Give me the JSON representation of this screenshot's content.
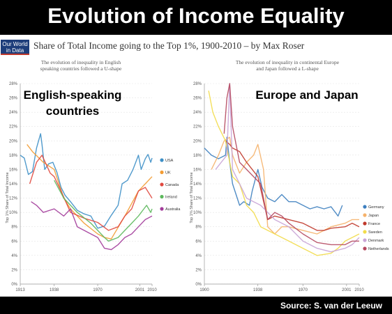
{
  "header": {
    "title": "Evolution of Income Equality"
  },
  "brand": {
    "line1": "Our World",
    "line2": "in Data"
  },
  "subtitle": "Share of Total Income going to the Top 1%, 1900-2010 – by Max Roser",
  "source": "Source: S. van der Leeuw",
  "colors": {
    "USA": "#3d8fc6",
    "UK": "#f39c33",
    "Canada": "#e0493f",
    "Ireland": "#5cb85c",
    "Australia": "#a23b9a",
    "Germany": "#3d7fbf",
    "Japan": "#f5b26b",
    "France": "#c0392b",
    "Sweden": "#f2dc4a",
    "Denmark": "#c9a4d6",
    "Netherlands": "#b5485f"
  },
  "chart_data": [
    {
      "type": "line",
      "note_line1": "The evolution of inequality in English",
      "note_line2": "speaking countries followed a U-shape",
      "label_line1": "English-speaking",
      "label_line2": "countries",
      "ylabel": "Top 1% Share of Total Income",
      "xlim": [
        1913,
        2010
      ],
      "ylim": [
        0,
        28
      ],
      "yticks": [
        "0%",
        "2%",
        "4%",
        "6%",
        "8%",
        "10%",
        "12%",
        "14%",
        "16%",
        "18%",
        "20%",
        "22%",
        "24%",
        "26%",
        "28%"
      ],
      "xticks": [
        {
          "value": 1913,
          "label": "1913"
        },
        {
          "value": 1938,
          "label": "1938"
        },
        {
          "value": 1970,
          "label": "1970"
        },
        {
          "value": 2001,
          "label": "2001"
        },
        {
          "value": 2010,
          "label": "2010"
        }
      ],
      "series": [
        {
          "name": "USA",
          "x": [
            1913,
            1916,
            1919,
            1922,
            1925,
            1928,
            1929,
            1931,
            1934,
            1937,
            1940,
            1943,
            1946,
            1950,
            1955,
            1960,
            1965,
            1970,
            1975,
            1980,
            1985,
            1988,
            1992,
            1996,
            2000,
            2002,
            2005,
            2007,
            2009,
            2010
          ],
          "y": [
            18,
            17.6,
            15.3,
            15.7,
            19,
            21,
            19.5,
            16,
            16.8,
            17,
            15.6,
            13.5,
            12.4,
            11.5,
            10.3,
            9.8,
            9.5,
            7.8,
            8.1,
            9.6,
            11,
            14,
            14.5,
            16,
            18,
            16,
            17.5,
            18.1,
            17,
            17.6
          ]
        },
        {
          "name": "UK",
          "x": [
            1918,
            1922,
            1930,
            1938,
            1945,
            1950,
            1960,
            1970,
            1975,
            1980,
            1990,
            2000,
            2005,
            2010
          ],
          "y": [
            19.5,
            18.5,
            17,
            16,
            12,
            10.5,
            8.5,
            7,
            6.5,
            6.3,
            9.5,
            13,
            14,
            15
          ]
        },
        {
          "name": "Canada",
          "x": [
            1920,
            1925,
            1929,
            1935,
            1938,
            1943,
            1950,
            1960,
            1970,
            1978,
            1985,
            1990,
            1995,
            2000,
            2005,
            2010
          ],
          "y": [
            14,
            17,
            18,
            15.5,
            15,
            13,
            10,
            9.2,
            8.6,
            7.5,
            8,
            9.5,
            10.5,
            13,
            13.5,
            12
          ]
        },
        {
          "name": "Ireland",
          "x": [
            1938,
            1945,
            1955,
            1965,
            1975,
            1978,
            1985,
            1990,
            1995,
            2000,
            2004,
            2006,
            2009,
            2010
          ],
          "y": [
            14.5,
            12,
            10,
            8.5,
            6.5,
            6,
            6.5,
            7.5,
            8.5,
            9.5,
            10.5,
            11,
            10,
            10.5
          ]
        },
        {
          "name": "Australia",
          "x": [
            1921,
            1925,
            1930,
            1938,
            1945,
            1950,
            1955,
            1960,
            1965,
            1970,
            1975,
            1980,
            1985,
            1990,
            1995,
            2000,
            2005,
            2010
          ],
          "y": [
            11.5,
            11,
            10,
            10.5,
            9.5,
            10.5,
            8,
            7.5,
            7,
            6.5,
            5,
            4.8,
            5.5,
            6.5,
            7,
            8,
            9,
            9.5
          ]
        }
      ]
    },
    {
      "type": "line",
      "note_line1": "The evolution of inequality in continental Europe",
      "note_line2": "and Japan followed a L-shape",
      "label_line1": "Europe and Japan",
      "ylabel": "Top 1% Share of Total Income",
      "xlim": [
        1900,
        2010
      ],
      "ylim": [
        0,
        28
      ],
      "yticks": [
        "0%",
        "2%",
        "4%",
        "6%",
        "8%",
        "10%",
        "12%",
        "14%",
        "16%",
        "18%",
        "20%",
        "22%",
        "24%",
        "26%",
        "28%"
      ],
      "xticks": [
        {
          "value": 1900,
          "label": "1900"
        },
        {
          "value": 1938,
          "label": "1938"
        },
        {
          "value": 1970,
          "label": "1970"
        },
        {
          "value": 2001,
          "label": "2001"
        },
        {
          "value": 2010,
          "label": "2010"
        }
      ],
      "series": [
        {
          "name": "Germany",
          "x": [
            1900,
            1905,
            1910,
            1915,
            1916,
            1918,
            1920,
            1925,
            1928,
            1932,
            1934,
            1938,
            1941,
            1945,
            1950,
            1955,
            1960,
            1965,
            1970,
            1975,
            1980,
            1985,
            1990,
            1995,
            1998
          ],
          "y": [
            19,
            18,
            17.5,
            18,
            20.5,
            17,
            14,
            11,
            11.5,
            11,
            13,
            16,
            13.5,
            12,
            11.5,
            12.5,
            11.5,
            11.5,
            11,
            10.5,
            10.8,
            10.5,
            10.8,
            9.5,
            11
          ]
        },
        {
          "name": "Japan",
          "x": [
            1905,
            1910,
            1914,
            1918,
            1920,
            1925,
            1930,
            1935,
            1938,
            1942,
            1945,
            1950,
            1955,
            1960,
            1970,
            1980,
            1990,
            2000,
            2005,
            2010
          ],
          "y": [
            16,
            18,
            20,
            20.5,
            18,
            15.5,
            17,
            18,
            19.5,
            16,
            8,
            7,
            8,
            8,
            7.5,
            7,
            8,
            8.5,
            9,
            9
          ]
        },
        {
          "name": "France",
          "x": [
            1915,
            1918,
            1920,
            1925,
            1930,
            1938,
            1945,
            1950,
            1960,
            1970,
            1980,
            1985,
            1990,
            2000,
            2005,
            2010
          ],
          "y": [
            20,
            19.5,
            19,
            18.5,
            17,
            15,
            9,
            9.5,
            9,
            8.5,
            7.5,
            7.5,
            7.8,
            8,
            8.5,
            8
          ]
        },
        {
          "name": "Sweden",
          "x": [
            1903,
            1906,
            1910,
            1915,
            1920,
            1925,
            1930,
            1935,
            1940,
            1945,
            1950,
            1955,
            1960,
            1970,
            1975,
            1980,
            1990,
            1995,
            2000,
            2005,
            2010
          ],
          "y": [
            27,
            24,
            22,
            20,
            15,
            14,
            11,
            10,
            8,
            7.5,
            7,
            6.5,
            6,
            5,
            4.5,
            4,
            4.3,
            5,
            6,
            6.5,
            7
          ]
        },
        {
          "name": "Denmark",
          "x": [
            1908,
            1912,
            1916,
            1918,
            1920,
            1925,
            1930,
            1935,
            1940,
            1945,
            1950,
            1960,
            1970,
            1980,
            1990,
            2000,
            2005,
            2010
          ],
          "y": [
            16,
            17,
            18,
            28,
            16,
            14,
            12,
            11.5,
            11,
            10,
            9,
            8,
            6,
            5,
            4.5,
            5,
            5.5,
            6.5
          ]
        },
        {
          "name": "Netherlands",
          "x": [
            1914,
            1916,
            1918,
            1920,
            1925,
            1930,
            1935,
            1940,
            1945,
            1950,
            1955,
            1960,
            1970,
            1980,
            1990,
            2000,
            2005,
            2010
          ],
          "y": [
            21,
            26,
            28,
            22,
            17,
            16,
            15,
            14,
            9,
            10,
            9.5,
            8.5,
            7,
            5.8,
            5.5,
            5.5,
            6,
            6
          ]
        }
      ]
    }
  ]
}
